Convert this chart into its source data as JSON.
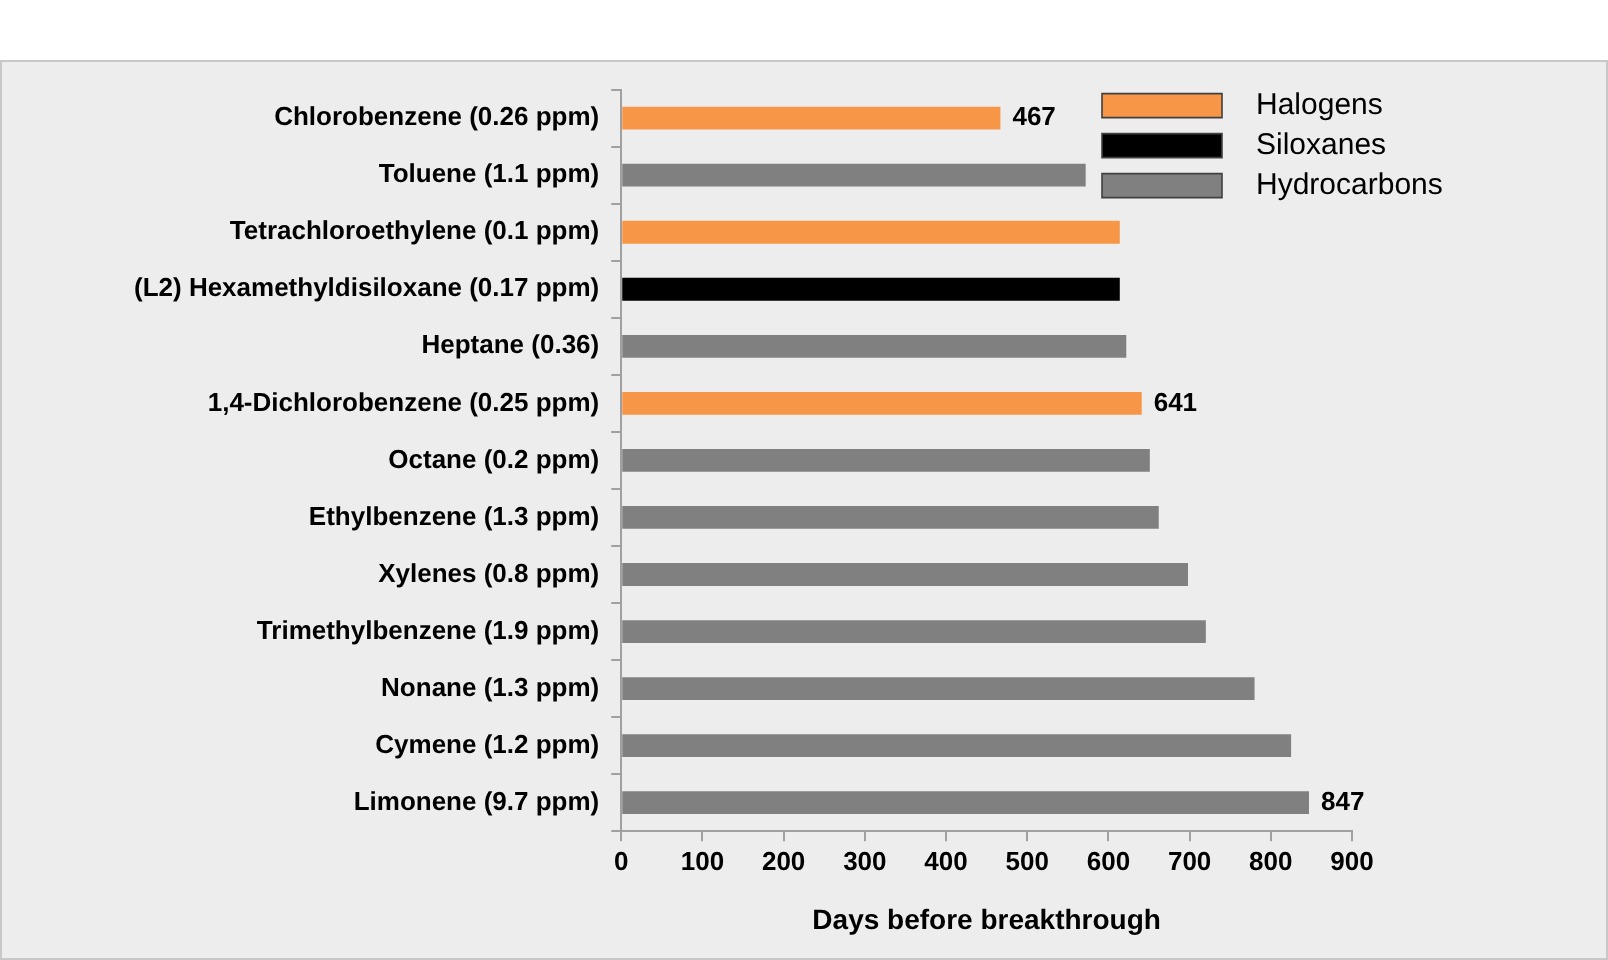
{
  "chart_data": {
    "type": "bar",
    "orientation": "horizontal",
    "stacked": true,
    "xlabel": "Days before breakthrough",
    "categories": [
      "Chlorobenzene (0.26 ppm)",
      "Toluene (1.1 ppm)",
      "Tetrachloroethylene (0.1 ppm)",
      "(L2) Hexamethyldisiloxane (0.17 ppm)",
      "Heptane (0.36)",
      "1,4-Dichlorobenzene (0.25 ppm)",
      "Octane (0.2 ppm)",
      "Ethylbenzene (1.3 ppm)",
      "Xylenes (0.8 ppm)",
      "Trimethylbenzene (1.9 ppm)",
      "Nonane (1.3 ppm)",
      "Cymene (1.2 ppm)",
      "Limonene (9.7 ppm)"
    ],
    "series": [
      {
        "name": "Halogens",
        "color": "#f79646",
        "values": [
          467,
          null,
          614,
          null,
          null,
          641,
          null,
          null,
          null,
          null,
          null,
          null,
          null
        ],
        "value_labels": [
          "467",
          null,
          null,
          null,
          null,
          "641",
          null,
          null,
          null,
          null,
          null,
          null,
          null
        ]
      },
      {
        "name": "Siloxanes",
        "color": "#000000",
        "values": [
          null,
          null,
          null,
          614,
          null,
          null,
          null,
          null,
          null,
          null,
          null,
          null,
          null
        ]
      },
      {
        "name": "Hydrocarbons",
        "color": "#808080",
        "values": [
          null,
          572,
          null,
          null,
          622,
          null,
          651,
          662,
          698,
          720,
          780,
          825,
          847
        ],
        "value_labels": [
          null,
          null,
          null,
          null,
          null,
          null,
          null,
          null,
          null,
          null,
          null,
          null,
          "847"
        ]
      }
    ],
    "xlim": [
      0,
      900
    ],
    "xticks": [
      0,
      100,
      200,
      300,
      400,
      500,
      600,
      700,
      800,
      900
    ],
    "grid": false,
    "legend": "top right"
  }
}
